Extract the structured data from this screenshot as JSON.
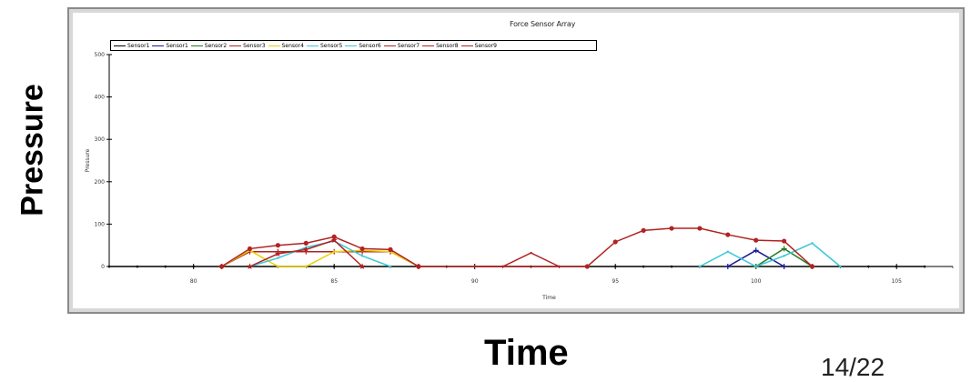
{
  "slide": {
    "ylabel": "Pressure",
    "xlabel": "Time",
    "page_number": "14/22"
  },
  "chart_data": {
    "type": "line",
    "title": "Force Sensor Array",
    "xlabel": "Time",
    "ylabel": "Pressure",
    "xlim": [
      77,
      107
    ],
    "ylim": [
      0,
      500
    ],
    "xticks": [
      80,
      85,
      90,
      95,
      100,
      105
    ],
    "yticks": [
      0,
      100,
      200,
      300,
      400,
      500
    ],
    "grid": false,
    "legend_position": "top-left",
    "series": [
      {
        "name": "Sensor1",
        "color": "#000000",
        "marker": "none",
        "x": [
          77,
          78,
          79,
          80,
          81,
          82,
          83,
          84,
          85,
          86,
          87,
          88,
          89,
          90,
          91,
          92,
          93,
          94,
          95,
          96,
          97,
          98,
          99,
          100,
          101,
          102,
          103,
          104,
          105,
          106
        ],
        "y": [
          0,
          0,
          0,
          0,
          0,
          0,
          0,
          0,
          0,
          0,
          0,
          0,
          0,
          0,
          0,
          0,
          0,
          0,
          0,
          0,
          0,
          0,
          0,
          0,
          0,
          0,
          0,
          0,
          0,
          0
        ]
      },
      {
        "name": "Sensor1",
        "color": "#1a1a99",
        "marker": "plus",
        "x": [
          99,
          100,
          101
        ],
        "y": [
          0,
          38,
          0
        ]
      },
      {
        "name": "Sensor2",
        "color": "#1f7a1f",
        "marker": "plus",
        "x": [
          100,
          101,
          102
        ],
        "y": [
          0,
          42,
          0
        ]
      },
      {
        "name": "Sensor3",
        "color": "#b22222",
        "marker": "plus",
        "x": [
          81,
          82,
          83,
          84,
          85,
          86,
          87,
          88
        ],
        "y": [
          0,
          35,
          35,
          35,
          35,
          35,
          35,
          0
        ]
      },
      {
        "name": "Sensor4",
        "color": "#e6d200",
        "marker": "none",
        "x": [
          81,
          82,
          83,
          84,
          85,
          86,
          87,
          88
        ],
        "y": [
          0,
          38,
          0,
          0,
          35,
          38,
          35,
          0
        ]
      },
      {
        "name": "Sensor5",
        "color": "#38c8d8",
        "marker": "none",
        "x": [
          82,
          83,
          84,
          85,
          86,
          87
        ],
        "y": [
          0,
          20,
          45,
          60,
          25,
          0
        ]
      },
      {
        "name": "Sensor6",
        "color": "#38c8d8",
        "marker": "none",
        "x": [
          98,
          99,
          100,
          101,
          102,
          103
        ],
        "y": [
          0,
          35,
          0,
          25,
          55,
          0
        ]
      },
      {
        "name": "Sensor7",
        "color": "#b22222",
        "marker": "dot",
        "x": [
          81,
          82,
          83,
          84,
          85,
          86,
          87,
          88,
          94,
          95,
          96,
          97,
          98,
          99,
          100,
          101,
          102
        ],
        "y": [
          0,
          42,
          50,
          55,
          70,
          42,
          40,
          0,
          0,
          58,
          85,
          90,
          90,
          75,
          62,
          60,
          0
        ]
      },
      {
        "name": "Sensor8",
        "color": "#b22222",
        "marker": "none",
        "x": [
          90,
          91,
          92,
          93
        ],
        "y": [
          0,
          0,
          32,
          0
        ]
      },
      {
        "name": "Sensor9",
        "color": "#b22222",
        "marker": "star",
        "x": [
          82,
          83,
          84,
          85,
          86
        ],
        "y": [
          0,
          30,
          40,
          62,
          0
        ]
      }
    ]
  }
}
